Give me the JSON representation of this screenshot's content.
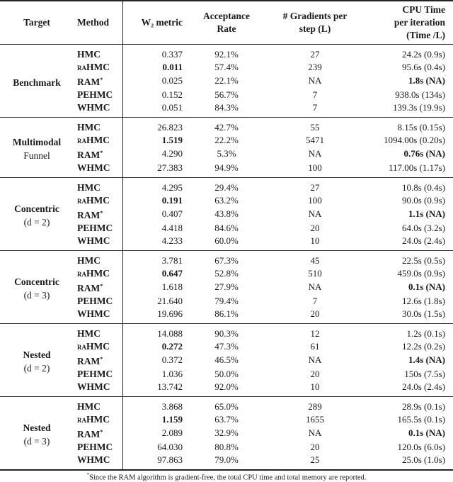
{
  "header": {
    "target": "Target",
    "method": "Method",
    "w2": "W₂ metric",
    "acceptance": [
      "Acceptance",
      "Rate"
    ],
    "gradients": [
      "# Gradients per",
      "step (L)"
    ],
    "cpu": [
      "CPU Time",
      "per iteration",
      "(Time /L)"
    ]
  },
  "groups": [
    {
      "target": [
        "Benchmark"
      ],
      "rows": [
        {
          "method": "HMC",
          "mark": "",
          "w2": "0.337",
          "acc": "92.1%",
          "grad": "27",
          "cpu": "24.2s (0.9s)"
        },
        {
          "method": "raHMC",
          "mark": "",
          "w2": "0.011",
          "w2_bold": true,
          "acc": "57.4%",
          "grad": "239",
          "cpu": "95.6s (0.4s)"
        },
        {
          "method": "RAM",
          "mark": "*",
          "w2": "0.025",
          "acc": "22.1%",
          "grad": "NA",
          "cpu": "1.8s (NA)",
          "cpu_bold": true
        },
        {
          "method": "PEHMC",
          "mark": "",
          "w2": "0.152",
          "acc": "56.7%",
          "grad": "7",
          "cpu": "938.0s (134s)"
        },
        {
          "method": "WHMC",
          "mark": "",
          "w2": "0.051",
          "acc": "84.3%",
          "grad": "7",
          "cpu": "139.3s (19.9s)"
        }
      ]
    },
    {
      "target": [
        "Multimodal",
        "Funnel"
      ],
      "rows": [
        {
          "method": "HMC",
          "mark": "",
          "w2": "26.823",
          "acc": "42.7%",
          "grad": "55",
          "cpu": "8.15s (0.15s)"
        },
        {
          "method": "raHMC",
          "mark": "",
          "w2": "1.519",
          "w2_bold": true,
          "acc": "22.2%",
          "grad": "5471",
          "cpu": "1094.00s (0.20s)"
        },
        {
          "method": "RAM",
          "mark": "*",
          "w2": "4.290",
          "acc": "5.3%",
          "grad": "NA",
          "cpu": "0.76s (NA)",
          "cpu_bold": true
        },
        {
          "method": "WHMC",
          "mark": "",
          "w2": "27.383",
          "acc": "94.9%",
          "grad": "100",
          "cpu": "117.00s (1.17s)"
        }
      ]
    },
    {
      "target": [
        "Concentric",
        "(d = 2)"
      ],
      "rows": [
        {
          "method": "HMC",
          "mark": "",
          "w2": "4.295",
          "acc": "29.4%",
          "grad": "27",
          "cpu": "10.8s (0.4s)"
        },
        {
          "method": "raHMC",
          "mark": "",
          "w2": "0.191",
          "w2_bold": true,
          "acc": "63.2%",
          "grad": "100",
          "cpu": "90.0s (0.9s)"
        },
        {
          "method": "RAM",
          "mark": "*",
          "w2": "0.407",
          "acc": "43.8%",
          "grad": "NA",
          "cpu": "1.1s (NA)",
          "cpu_bold": true
        },
        {
          "method": "PEHMC",
          "mark": "",
          "w2": "4.418",
          "acc": "84.6%",
          "grad": "20",
          "cpu": "64.0s (3.2s)"
        },
        {
          "method": "WHMC",
          "mark": "",
          "w2": "4.233",
          "acc": "60.0%",
          "grad": "10",
          "cpu": "24.0s (2.4s)"
        }
      ]
    },
    {
      "target": [
        "Concentric",
        "(d = 3)"
      ],
      "rows": [
        {
          "method": "HMC",
          "mark": "",
          "w2": "3.781",
          "acc": "67.3%",
          "grad": "45",
          "cpu": "22.5s (0.5s)"
        },
        {
          "method": "raHMC",
          "mark": "",
          "w2": "0.647",
          "w2_bold": true,
          "acc": "52.8%",
          "grad": "510",
          "cpu": "459.0s (0.9s)"
        },
        {
          "method": "RAM",
          "mark": "*",
          "w2": "1.618",
          "acc": "27.9%",
          "grad": "NA",
          "cpu": "0.1s (NA)",
          "cpu_bold": true
        },
        {
          "method": "PEHMC",
          "mark": "",
          "w2": "21.640",
          "acc": "79.4%",
          "grad": "7",
          "cpu": "12.6s (1.8s)"
        },
        {
          "method": "WHMC",
          "mark": "",
          "w2": "19.696",
          "acc": "86.1%",
          "grad": "20",
          "cpu": "30.0s (1.5s)"
        }
      ]
    },
    {
      "target": [
        "Nested",
        "(d = 2)"
      ],
      "rows": [
        {
          "method": "HMC",
          "mark": "",
          "w2": "14.088",
          "acc": "90.3%",
          "grad": "12",
          "cpu": "1.2s (0.1s)"
        },
        {
          "method": "raHMC",
          "mark": "",
          "w2": "0.272",
          "w2_bold": true,
          "acc": "47.3%",
          "grad": "61",
          "cpu": "12.2s (0.2s)"
        },
        {
          "method": "RAM",
          "mark": "*",
          "w2": "0.372",
          "acc": "46.5%",
          "grad": "NA",
          "cpu": "1.4s (NA)",
          "cpu_bold": true
        },
        {
          "method": "PEHMC",
          "mark": "",
          "w2": "1.036",
          "acc": "50.0%",
          "grad": "20",
          "cpu": "150s (7.5s)"
        },
        {
          "method": "WHMC",
          "mark": "",
          "w2": "13.742",
          "acc": "92.0%",
          "grad": "10",
          "cpu": "24.0s (2.4s)"
        }
      ]
    },
    {
      "target": [
        "Nested",
        "(d = 3)"
      ],
      "rows": [
        {
          "method": "HMC",
          "mark": "",
          "w2": "3.868",
          "acc": "65.0%",
          "grad": "289",
          "cpu": "28.9s (0.1s)"
        },
        {
          "method": "raHMC",
          "mark": "",
          "w2": "1.159",
          "w2_bold": true,
          "acc": "63.7%",
          "grad": "1655",
          "cpu": "165.5s (0.1s)"
        },
        {
          "method": "RAM",
          "mark": "*",
          "w2": "2.089",
          "acc": "32.9%",
          "grad": "NA",
          "cpu": "0.1s (NA)",
          "cpu_bold": true
        },
        {
          "method": "PEHMC",
          "mark": "",
          "w2": "64.030",
          "acc": "80.8%",
          "grad": "20",
          "cpu": "120.0s (6.0s)"
        },
        {
          "method": "WHMC",
          "mark": "",
          "w2": "97.863",
          "acc": "79.0%",
          "grad": "25",
          "cpu": "25.0s (1.0s)"
        }
      ]
    }
  ],
  "footnote": {
    "mark": "*",
    "text": "Since the RAM algorithm is gradient-free, the total CPU time and total memory are reported."
  }
}
